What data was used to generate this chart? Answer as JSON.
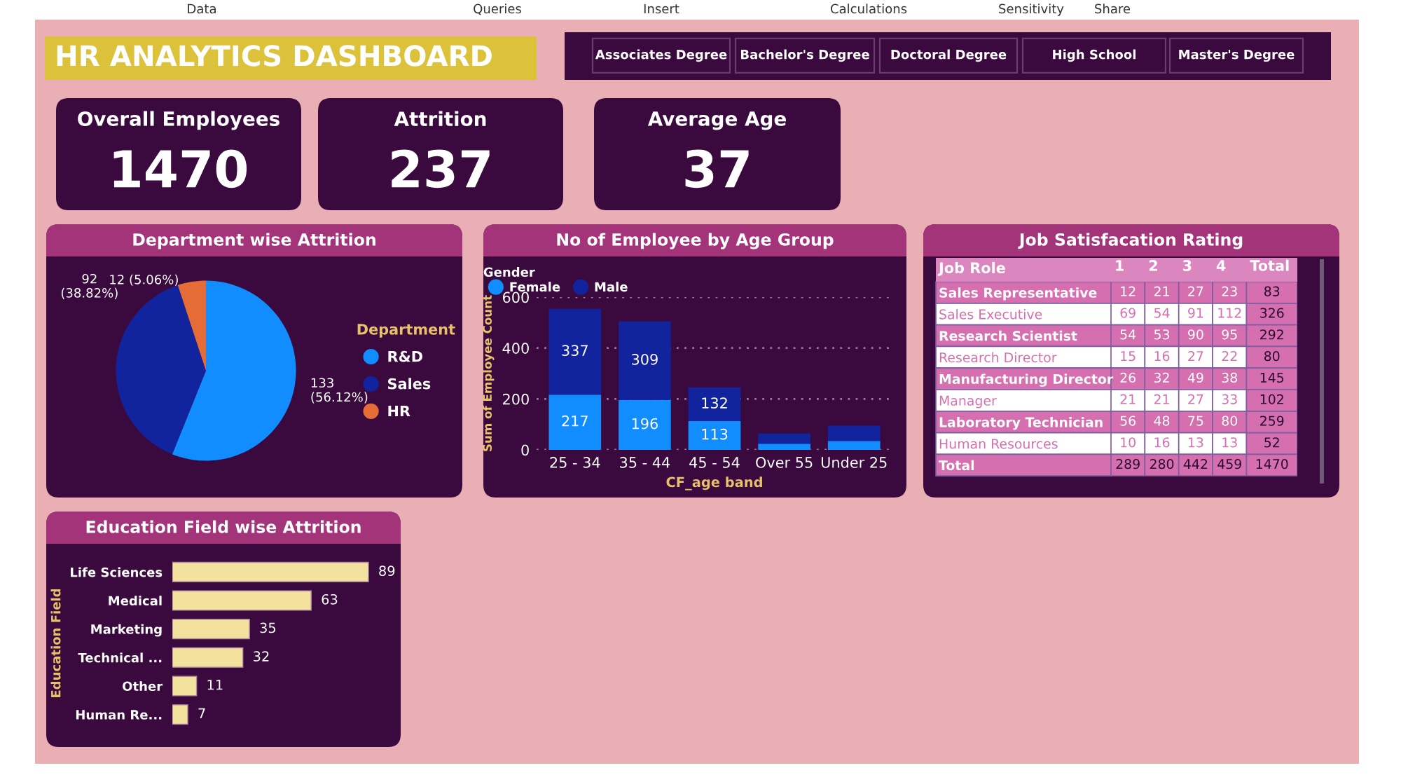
{
  "chart_data": [
    {
      "type": "other",
      "annotations": [
        "Data",
        "Queries",
        "Insert",
        "Calculations",
        "Sensitivity",
        "Share"
      ]
    },
    {
      "type": "other",
      "title": "HR ANALYTICS DASHBOARD"
    },
    {
      "type": "other",
      "annotations": [
        "Associates Degree",
        "Bachelor's Degree",
        "Doctoral Degree",
        "High School",
        "Master's Degree"
      ]
    },
    {
      "type": "other",
      "title": "Overall Employees",
      "annotations": [
        "1470"
      ]
    },
    {
      "type": "other",
      "title": "Attrition",
      "annotations": [
        "237"
      ]
    },
    {
      "type": "other",
      "title": "Average Age",
      "annotations": [
        "37"
      ]
    },
    {
      "type": "pie",
      "title": "Department wise Attrition",
      "legend_title": "Department",
      "legend": "right",
      "categories": [
        "R&D",
        "Sales",
        "HR"
      ],
      "values": [
        133,
        92,
        12
      ],
      "colors": [
        "#118dff",
        "#12239e",
        "#e66c37"
      ],
      "value_labels": [
        "133 (56.12%)",
        "92 (38.82%)",
        "12 (5.06%)"
      ]
    },
    {
      "type": "bar",
      "stacked": true,
      "title": "No of Employee by Age Group",
      "legend_title": "Gender",
      "legend": "top left",
      "xlabel": "CF_age band",
      "ylabel": "Sum of Employee Count",
      "grid": "y",
      "categories": [
        "25 - 34",
        "35 - 44",
        "45 - 54",
        "Over 55",
        "Under 25"
      ],
      "ylim": [
        0,
        600
      ],
      "yticks": [
        0,
        200,
        400,
        600
      ],
      "series": [
        {
          "name": "Female",
          "color": "#118dff",
          "values": [
            217,
            196,
            113,
            24,
            35
          ],
          "value_labels": [
            "217",
            "196",
            "113",
            null,
            null
          ]
        },
        {
          "name": "Male",
          "color": "#12239e",
          "values": [
            337,
            309,
            132,
            41,
            60
          ],
          "value_labels": [
            "337",
            "309",
            "132",
            null,
            null
          ]
        }
      ]
    },
    {
      "type": "heatmap",
      "title": "Job Satisfacation Rating",
      "ylabel": "Job Role",
      "data_labels": true,
      "categories": [
        "1",
        "2",
        "3",
        "4",
        "Total"
      ],
      "y_categories": [
        "Sales Representative",
        "Sales Executive",
        "Research Scientist",
        "Research Director",
        "Manufacturing Director",
        "Manager",
        "Laboratory Technician",
        "Human Resources",
        "Total"
      ],
      "cells": [
        [
          12,
          21,
          27,
          23,
          83
        ],
        [
          69,
          54,
          91,
          112,
          326
        ],
        [
          54,
          53,
          90,
          95,
          292
        ],
        [
          15,
          16,
          27,
          22,
          80
        ],
        [
          26,
          32,
          49,
          38,
          145
        ],
        [
          21,
          21,
          27,
          33,
          102
        ],
        [
          56,
          48,
          75,
          80,
          259
        ],
        [
          10,
          16,
          13,
          13,
          52
        ],
        [
          289,
          280,
          442,
          459,
          1470
        ]
      ]
    },
    {
      "type": "bar",
      "orientation": "horizontal",
      "title": "Education Field wise Attrition",
      "ylabel": "Education Field",
      "data_labels": true,
      "categories": [
        "Life Sciences",
        "Medical",
        "Marketing",
        "Technical ...",
        "Other",
        "Human Re..."
      ],
      "values": [
        89,
        63,
        35,
        32,
        11,
        7
      ],
      "color": "#f2e29e"
    }
  ]
}
